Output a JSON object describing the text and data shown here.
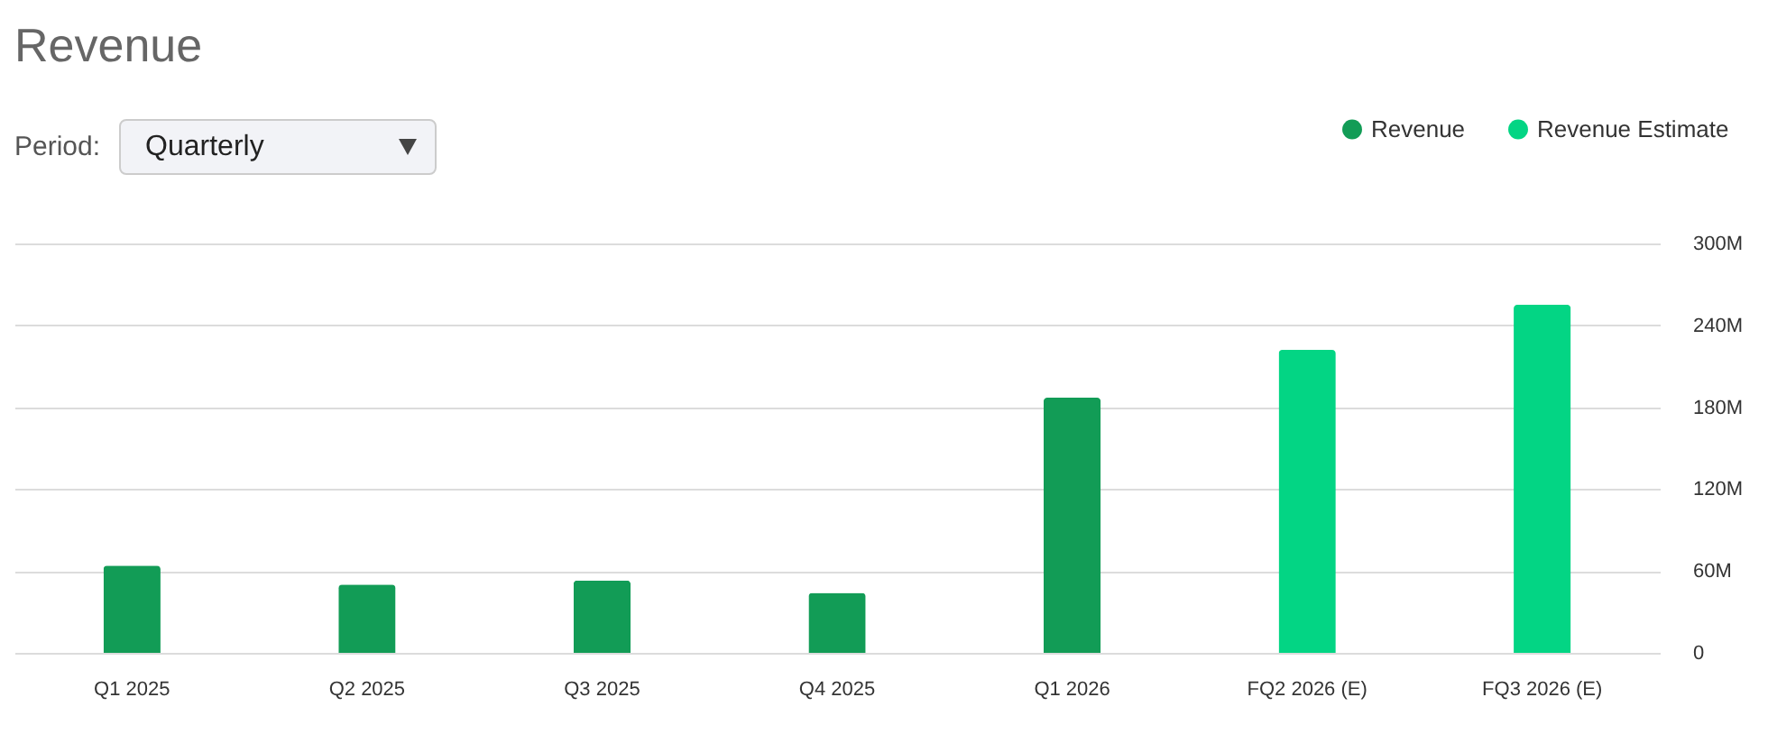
{
  "chart_data": {
    "type": "bar",
    "title": "Revenue",
    "annotations": [
      "Period:",
      "Quarterly"
    ],
    "categories": [
      "Q1 2025",
      "Q2 2025",
      "Q3 2025",
      "Q4 2025",
      "Q1 2026",
      "FQ2 2026 (E)",
      "FQ3 2026 (E)"
    ],
    "series": [
      {
        "name": "Revenue",
        "color": "#129c56",
        "values": [
          64,
          50,
          53,
          44,
          187,
          null,
          null
        ]
      },
      {
        "name": "Revenue Estimate",
        "color": "#03d584",
        "values": [
          null,
          null,
          null,
          null,
          null,
          222,
          255
        ]
      }
    ],
    "ylim": [
      0,
      300
    ],
    "yticks": [
      {
        "value": 0,
        "label": "0"
      },
      {
        "value": 60,
        "label": "60M"
      },
      {
        "value": 120,
        "label": "120M"
      },
      {
        "value": 180,
        "label": "180M"
      },
      {
        "value": 240,
        "label": "240M"
      },
      {
        "value": 300,
        "label": "300M"
      }
    ],
    "grid": true,
    "legend": "top right"
  }
}
